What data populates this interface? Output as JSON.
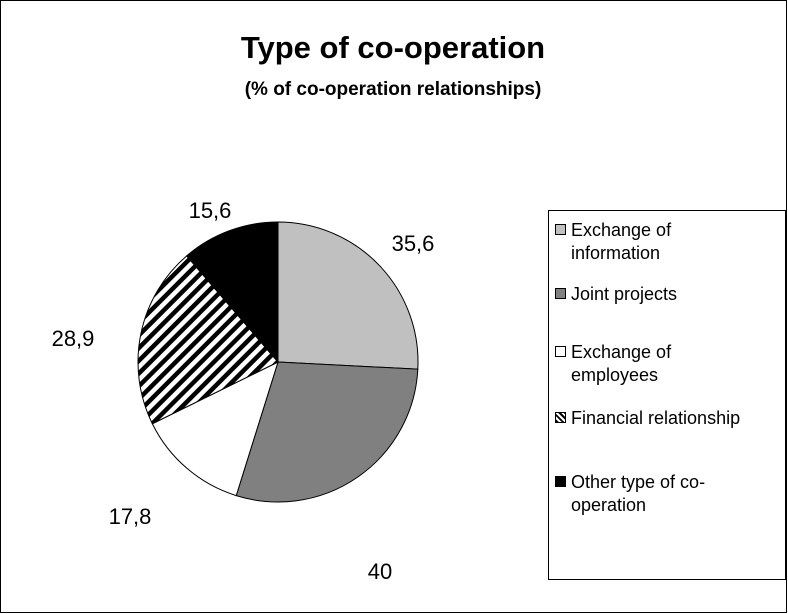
{
  "chart_data": {
    "type": "pie",
    "title": "Type of co-operation",
    "subtitle": "(% of co-operation relationships)",
    "categories": [
      "Exchange of information",
      "Joint projects",
      "Exchange of employees",
      "Financial relationship",
      "Other type of co-operation"
    ],
    "values": [
      35.6,
      40,
      17.8,
      28.9,
      15.6
    ],
    "value_labels": [
      "35,6",
      "40",
      "17,8",
      "28,9",
      "15,6"
    ],
    "colors": [
      "#c0c0c0",
      "#808080",
      "#ffffff",
      "hatch",
      "#000000"
    ],
    "legend": "right"
  }
}
